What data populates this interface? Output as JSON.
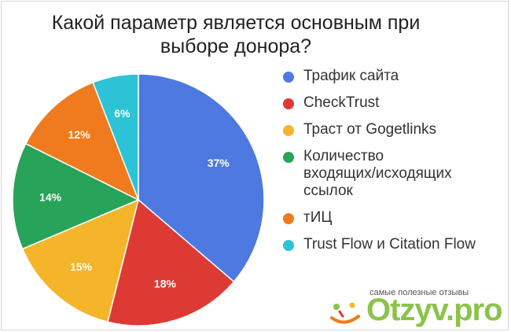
{
  "chart_data": {
    "type": "pie",
    "title": "Какой параметр является основным при выборе донора?",
    "slices": [
      {
        "label": "Трафик сайта",
        "value": 37,
        "value_label": "37%",
        "color": "#4d79e0"
      },
      {
        "label": "CheckTrust",
        "value": 18,
        "value_label": "18%",
        "color": "#de3a34"
      },
      {
        "label": "Траст от Gogetlinks",
        "value": 15,
        "value_label": "15%",
        "color": "#f5b52a"
      },
      {
        "label": "Количество входящих/исходящих ссылок",
        "value": 14,
        "value_label": "14%",
        "color": "#27a35a"
      },
      {
        "label": "тИЦ",
        "value": 12,
        "value_label": "12%",
        "color": "#f07b1e"
      },
      {
        "label": "Trust Flow и Citation Flow",
        "value": 6,
        "value_label": "6%",
        "color": "#2cc3d6"
      }
    ],
    "legend_lines": [
      "Трафик сайта",
      "CheckTrust",
      "Траст от Gogetlinks",
      "Количество\nвходящих/исходящих\nссылок",
      "тИЦ",
      "Trust Flow и Citation Flow"
    ],
    "legend_position": "right"
  },
  "watermark": {
    "tagline": "самые полезные отзывы",
    "brand": "Otzyv.pro"
  }
}
